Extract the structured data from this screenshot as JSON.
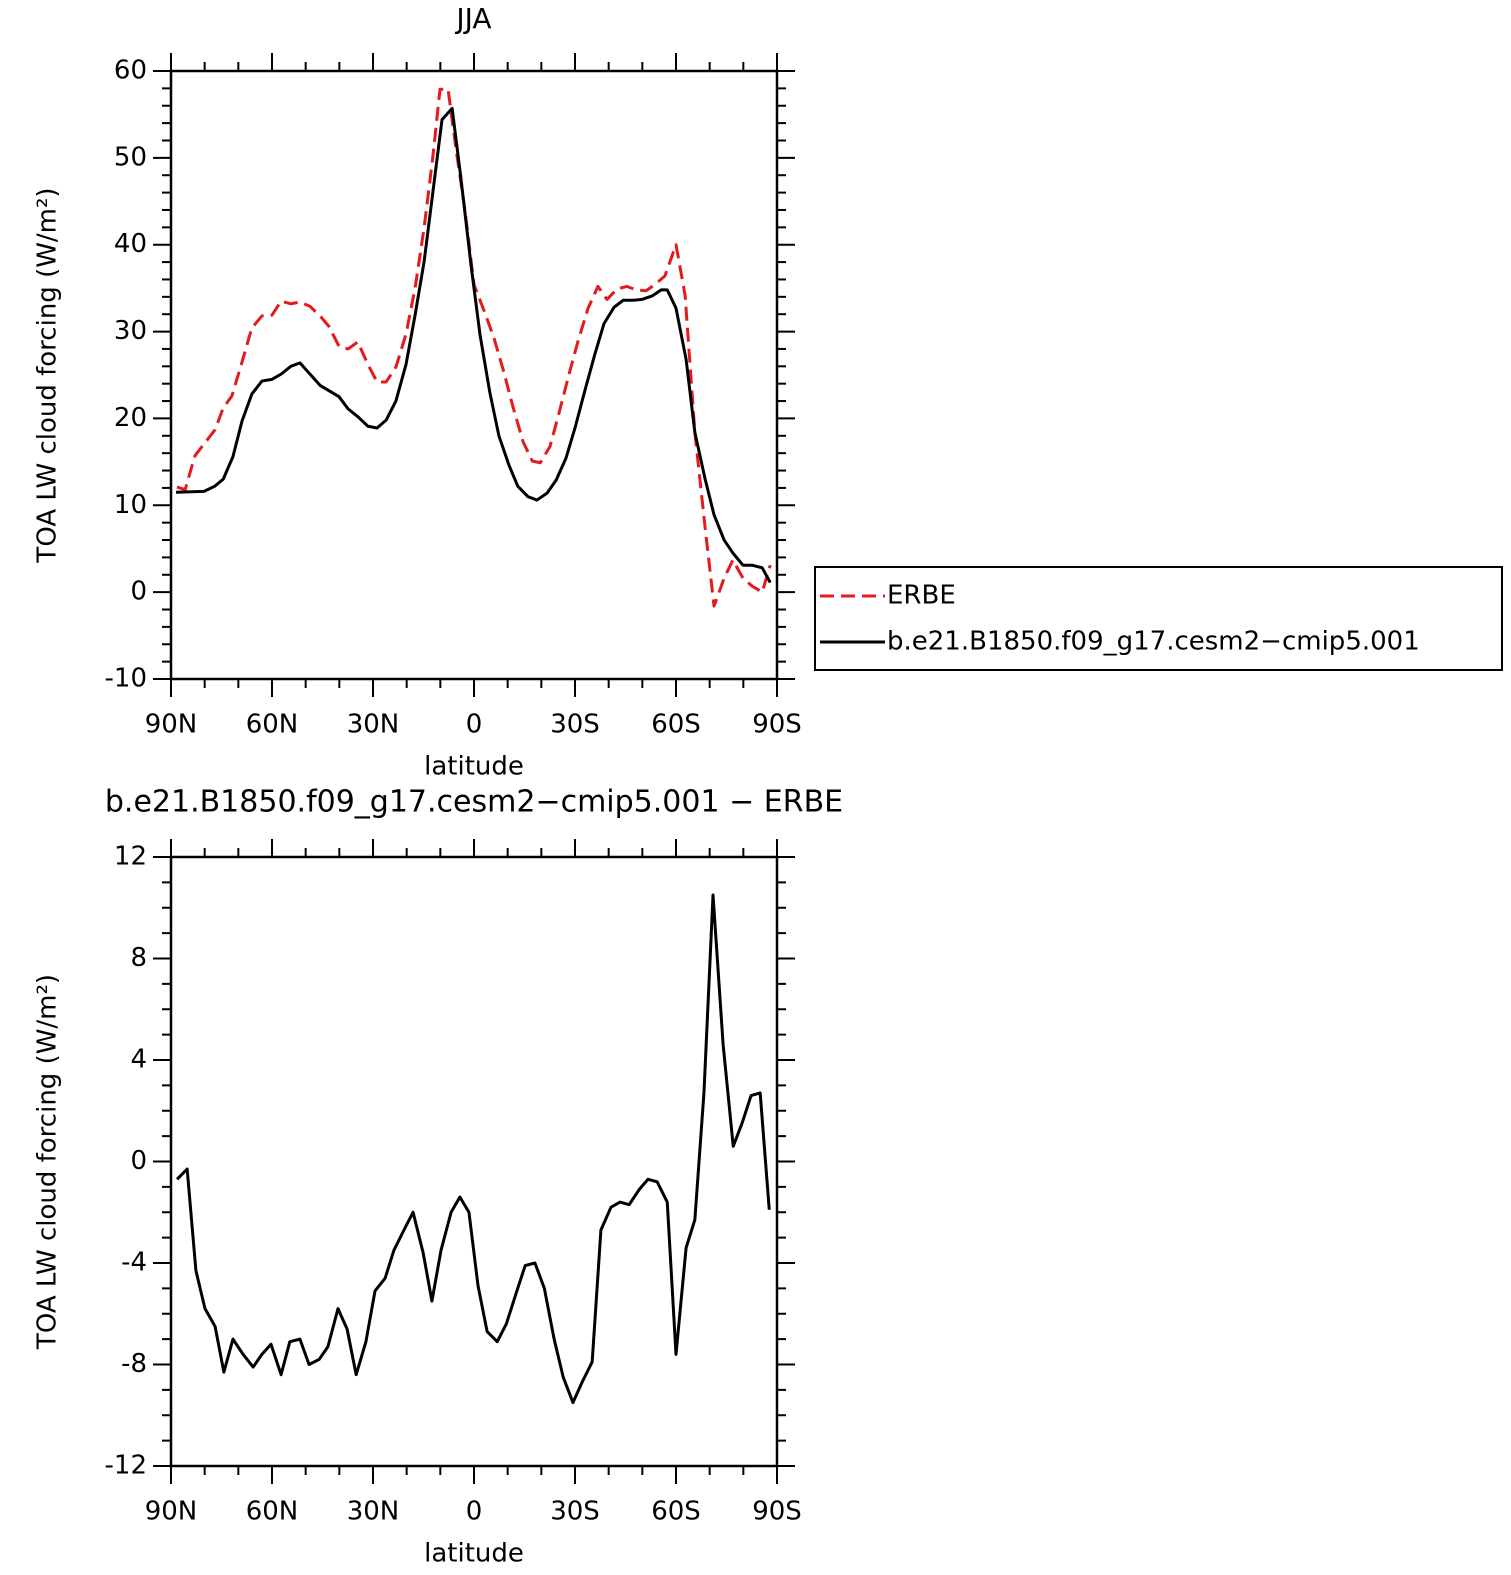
{
  "chart_data": [
    {
      "type": "line",
      "title": "JJA",
      "xlabel": "latitude",
      "ylabel": "TOA LW cloud forcing (W/m²)",
      "xlim": [
        90,
        -90
      ],
      "xticks": [
        {
          "value": 90,
          "label": "90N"
        },
        {
          "value": 60,
          "label": "60N"
        },
        {
          "value": 30,
          "label": "30N"
        },
        0,
        {
          "value": -30,
          "label": "30S"
        },
        {
          "value": -60,
          "label": "60S"
        },
        {
          "value": -90,
          "label": "90S"
        }
      ],
      "ylim": [
        -10,
        60
      ],
      "yticks": [
        -10,
        0,
        10,
        20,
        30,
        40,
        50,
        60
      ],
      "legend": "outside-right",
      "series": [
        {
          "name": "ERBE",
          "color": "#e41a1c",
          "style": "dashed",
          "x": [
            88.2,
            85.8,
            82.9,
            79.9,
            76.9,
            74.5,
            71.9,
            68.9,
            66,
            63,
            60,
            57.3,
            54.4,
            51.7,
            48.7,
            45.7,
            43.1,
            40.1,
            37.4,
            34.5,
            31.5,
            28.8,
            26.1,
            23.2,
            20.2,
            17.5,
            14.8,
            12.2,
            10.1,
            7.7,
            5.3,
            2.7,
            0,
            -3,
            -5.9,
            -8.9,
            -11.6,
            -14.6,
            -17.3,
            -19.7,
            -22.6,
            -25.3,
            -28.3,
            -30.9,
            -33.9,
            -36.8,
            -39.5,
            -42.5,
            -45.4,
            -48.1,
            -51.1,
            -53.7,
            -56.7,
            -60,
            -62.7,
            -65.6,
            -68.6,
            -71.3,
            -74.3,
            -76.9,
            -79.9,
            -82.6,
            -85.6,
            -88
          ],
          "values": [
            12.1,
            11.8,
            15.7,
            17.2,
            18.7,
            21.2,
            22.6,
            26.5,
            30.4,
            31.8,
            31.9,
            33.5,
            33.2,
            33.4,
            32.9,
            31.8,
            30.6,
            28.3,
            28.0,
            28.8,
            26.2,
            24.2,
            24.2,
            25.9,
            29.7,
            35.0,
            42.0,
            50.2,
            57.9,
            57.9,
            50.9,
            44.0,
            35.4,
            32.4,
            29.3,
            25.3,
            21.3,
            17.3,
            15.1,
            14.9,
            16.8,
            20.7,
            25.2,
            28.9,
            32.7,
            35.2,
            33.7,
            34.9,
            35.2,
            34.8,
            34.7,
            35.4,
            36.4,
            40.0,
            34.2,
            18.4,
            7.6,
            -1.6,
            1.6,
            3.7,
            1.6,
            0.7,
            0,
            3.1
          ]
        },
        {
          "name": "b.e21.B1850.f09_g17.cesm2−cmip5.001",
          "color": "#000000",
          "style": "solid",
          "x": [
            88.5,
            80.2,
            77,
            74.5,
            71.6,
            68.9,
            66,
            63,
            60,
            57.3,
            54.4,
            51.7,
            45.7,
            40.1,
            37.4,
            34.5,
            31.5,
            28.8,
            26.1,
            23.2,
            20.2,
            17.5,
            14.8,
            12.2,
            9.5,
            6.5,
            3.9,
            0.9,
            -1.8,
            -4.7,
            -7.4,
            -10.4,
            -13,
            -16,
            -18.7,
            -21.7,
            -24.4,
            -27.3,
            -30,
            -33,
            -35.9,
            -38.6,
            -41.6,
            -44.3,
            -47.2,
            -49.9,
            -52.9,
            -55.6,
            -57.4,
            -60,
            -63,
            -65.6,
            -68.6,
            -71.3,
            -74.3,
            -76.9,
            -79.9,
            -82.6,
            -85.6,
            -88
          ],
          "values": [
            11.5,
            11.6,
            12.2,
            13.0,
            15.6,
            19.7,
            22.8,
            24.3,
            24.5,
            25.1,
            26.0,
            26.4,
            23.8,
            22.5,
            21.1,
            20.2,
            19.1,
            18.9,
            19.8,
            22.0,
            26.2,
            31.9,
            38.1,
            46.1,
            54.4,
            55.7,
            47.7,
            37.7,
            29.6,
            23.0,
            18.0,
            14.6,
            12.2,
            11.0,
            10.6,
            11.4,
            12.9,
            15.4,
            18.9,
            23.3,
            27.4,
            30.9,
            32.8,
            33.6,
            33.6,
            33.7,
            34.1,
            34.8,
            34.8,
            32.7,
            26.8,
            18.4,
            13.1,
            8.9,
            6.0,
            4.5,
            3.1,
            3.1,
            2.8,
            1.1
          ]
        }
      ]
    },
    {
      "type": "line",
      "title": "b.e21.B1850.f09_g17.cesm2−cmip5.001 − ERBE",
      "xlabel": "latitude",
      "ylabel": "TOA LW cloud forcing (W/m²)",
      "xlim": [
        90,
        -90
      ],
      "xticks": [
        {
          "value": 90,
          "label": "90N"
        },
        {
          "value": 60,
          "label": "60N"
        },
        {
          "value": 30,
          "label": "30N"
        },
        0,
        {
          "value": -30,
          "label": "30S"
        },
        {
          "value": -60,
          "label": "60S"
        },
        {
          "value": -90,
          "label": "90S"
        }
      ],
      "ylim": [
        -12,
        12
      ],
      "yticks": [
        -12,
        -8,
        -4,
        0,
        4,
        8,
        12
      ],
      "series": [
        {
          "color": "#000000",
          "style": "solid",
          "x": [
            88.2,
            85.2,
            82.6,
            79.9,
            76.9,
            74.3,
            71.6,
            68.6,
            65.6,
            63,
            60.3,
            57.3,
            54.7,
            51.7,
            49,
            46,
            43.4,
            40.4,
            37.7,
            35,
            32.1,
            29.4,
            26.4,
            23.8,
            20.8,
            18.1,
            15.1,
            12.5,
            9.8,
            6.8,
            4.2,
            1.5,
            -1.2,
            -3.9,
            -6.9,
            -9.6,
            -12.5,
            -15.2,
            -18.1,
            -20.9,
            -23.8,
            -26.5,
            -29.4,
            -32.1,
            -35.1,
            -37.7,
            -40.7,
            -43.4,
            -46.1,
            -49.1,
            -51.7,
            -54.4,
            -57.4,
            -60,
            -63,
            -65.6,
            -68.3,
            -71,
            -74,
            -77,
            -79.6,
            -82.3,
            -85,
            -87.7
          ],
          "values": [
            -0.7,
            -0.3,
            -4.3,
            -5.8,
            -6.5,
            -8.3,
            -7.0,
            -7.6,
            -8.1,
            -7.6,
            -7.2,
            -8.4,
            -7.1,
            -7.0,
            -8.0,
            -7.8,
            -7.3,
            -5.8,
            -6.6,
            -8.4,
            -7.1,
            -5.1,
            -4.6,
            -3.5,
            -2.7,
            -2.0,
            -3.6,
            -5.5,
            -3.5,
            -2.0,
            -1.4,
            -2.0,
            -4.9,
            -6.7,
            -7.1,
            -6.4,
            -5.2,
            -4.1,
            -4.0,
            -5.0,
            -7.0,
            -8.5,
            -9.5,
            -8.7,
            -7.9,
            -2.7,
            -1.8,
            -1.6,
            -1.7,
            -1.1,
            -0.7,
            -0.8,
            -1.6,
            -7.6,
            -3.4,
            -2.3,
            2.7,
            10.5,
            4.6,
            0.6,
            1.5,
            2.6,
            2.7,
            -1.9
          ]
        }
      ]
    }
  ]
}
